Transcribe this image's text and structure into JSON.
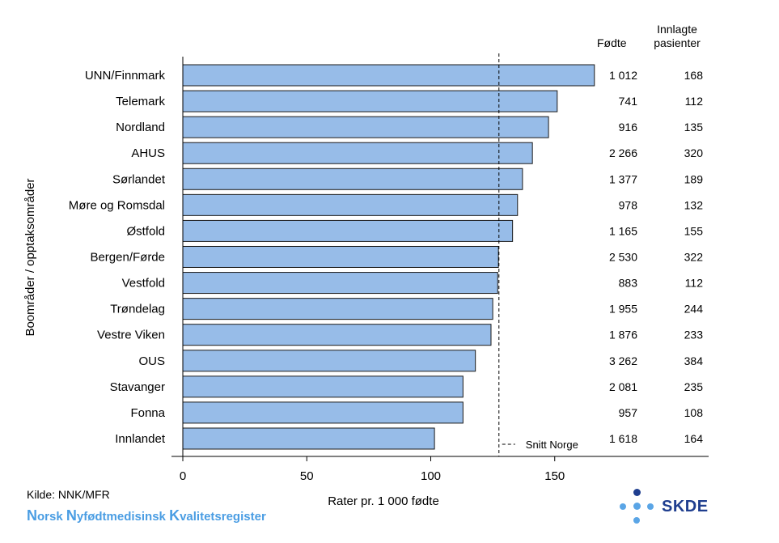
{
  "headers": {
    "births": "Fødte",
    "inpatients_line1": "Innlagte",
    "inpatients_line2": "pasienter"
  },
  "source": "Kilde: NNK/MFR",
  "registry": {
    "word1_initial": "N",
    "word1_rest": "orsk ",
    "word2_initial": "N",
    "word2_rest": "yfødtmedisinsk ",
    "word3_initial": "K",
    "word3_rest": "valitetsregister"
  },
  "logo_text": "SKDE",
  "colors": {
    "bar_fill": "#97bce8",
    "bar_stroke": "#1a1a1a",
    "registry_text": "#4a9de3",
    "logo_dark": "#1f3e8f",
    "logo_light": "#5aa5e6"
  },
  "chart_data": {
    "type": "bar",
    "orientation": "horizontal",
    "xlabel": "Rater pr. 1 000 fødte",
    "ylabel": "Boområder / opptaksområder",
    "xlim": [
      0,
      190
    ],
    "xticks": [
      0,
      50,
      100,
      150
    ],
    "reference_line": {
      "label": "Snitt Norge",
      "value": 127.5,
      "style": "dashed"
    },
    "rows": [
      {
        "name": "UNN/Finnmark",
        "value": 166,
        "births": "1 012",
        "inpatients": "168"
      },
      {
        "name": "Telemark",
        "value": 151,
        "births": "741",
        "inpatients": "112"
      },
      {
        "name": "Nordland",
        "value": 147.5,
        "births": "916",
        "inpatients": "135"
      },
      {
        "name": "AHUS",
        "value": 141,
        "births": "2 266",
        "inpatients": "320"
      },
      {
        "name": "Sørlandet",
        "value": 137,
        "births": "1 377",
        "inpatients": "189"
      },
      {
        "name": "Møre og Romsdal",
        "value": 135,
        "births": "978",
        "inpatients": "132"
      },
      {
        "name": "Østfold",
        "value": 133,
        "births": "1 165",
        "inpatients": "155"
      },
      {
        "name": "Bergen/Førde",
        "value": 127.3,
        "births": "2 530",
        "inpatients": "322"
      },
      {
        "name": "Vestfold",
        "value": 127,
        "births": "883",
        "inpatients": "112"
      },
      {
        "name": "Trøndelag",
        "value": 125,
        "births": "1 955",
        "inpatients": "244"
      },
      {
        "name": "Vestre Viken",
        "value": 124.3,
        "births": "1 876",
        "inpatients": "233"
      },
      {
        "name": "OUS",
        "value": 118,
        "births": "3 262",
        "inpatients": "384"
      },
      {
        "name": "Stavanger",
        "value": 113,
        "births": "2 081",
        "inpatients": "235"
      },
      {
        "name": "Fonna",
        "value": 113,
        "births": "957",
        "inpatients": "108"
      },
      {
        "name": "Innlandet",
        "value": 101.5,
        "births": "1 618",
        "inpatients": "164"
      }
    ]
  }
}
